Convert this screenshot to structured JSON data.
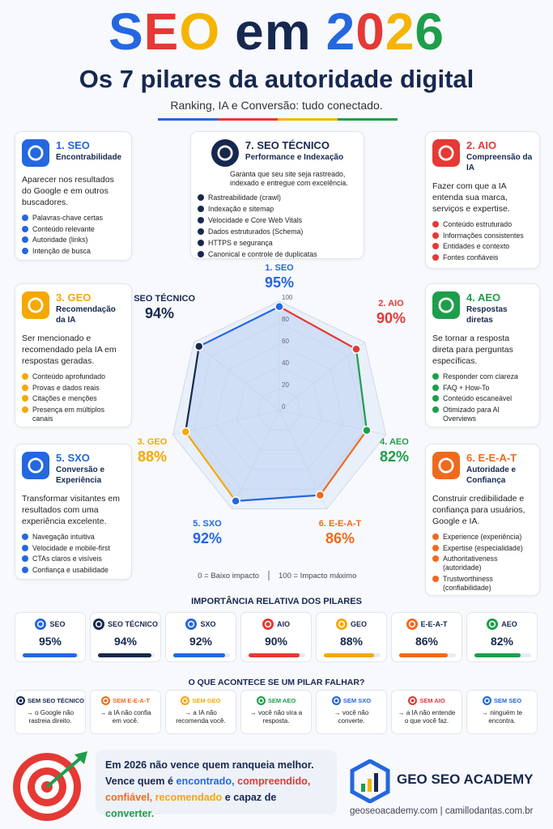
{
  "header": {
    "title_segments": [
      {
        "text": "S",
        "color": "#2467e0"
      },
      {
        "text": "E",
        "color": "#e53935"
      },
      {
        "text": "O",
        "color": "#f5b400"
      },
      {
        "text": "em",
        "color": "#17284f"
      },
      {
        "text": "2",
        "color": "#2467e0"
      },
      {
        "text": "0",
        "color": "#e53935"
      },
      {
        "text": "2",
        "color": "#f5b400"
      },
      {
        "text": "6",
        "color": "#1e9e4a"
      }
    ],
    "subtitle": "Os 7 pilares da autoridade digital",
    "tagline": "Ranking, IA e Conversão: tudo conectado."
  },
  "cards": [
    {
      "title": "1. SEO",
      "subtitle": "Encontrabilidade",
      "description": "Aparecer nos resultados do Google e em outros buscadores.",
      "bullets": [
        "Palavras-chave certas",
        "Conteúdo relevante",
        "Autoridade (links)",
        "Intenção de busca"
      ],
      "color": "#2467e0"
    },
    {
      "title": "7. SEO TÉCNICO",
      "subtitle": "Performance e Indexação",
      "description": "Garanta que seu site seja rastreado, indexado e entregue com excelência.",
      "bullets": [
        "Rastreabilidade (crawl)",
        "Indexação e sitemap",
        "Velocidade e Core Web Vitals",
        "Dados estruturados (Schema)",
        "HTTPS e segurança",
        "Canonical e controle de duplicatas"
      ],
      "color": "#17284f"
    },
    {
      "title": "2. AIO",
      "subtitle": "Compreensão da IA",
      "description": "Fazer com que a IA entenda sua marca, serviços e expertise.",
      "bullets": [
        "Conteúdo estruturado",
        "Informações consistentes",
        "Entidades e contexto",
        "Fontes confiáveis"
      ],
      "color": "#e53935"
    },
    {
      "title": "3. GEO",
      "subtitle": "Recomendação da IA",
      "description": "Ser mencionado e recomendado pela IA em respostas geradas.",
      "bullets": [
        "Conteúdo aprofundado",
        "Provas e dados reais",
        "Citações e menções",
        "Presença em múltiplos canais"
      ],
      "color": "#f5a800"
    },
    {
      "title": "4. AEO",
      "subtitle": "Respostas diretas",
      "description": "Se tornar a resposta direta para perguntas específicas.",
      "bullets": [
        "Responder com clareza",
        "FAQ + How-To",
        "Conteúdo escaneável",
        "Otimizado para AI Overviews"
      ],
      "color": "#1e9e4a"
    },
    {
      "title": "5. SXO",
      "subtitle": "Conversão e Experiência",
      "description": "Transformar visitantes em resultados com uma experiência excelente.",
      "bullets": [
        "Navegação intuitiva",
        "Velocidade e mobile-first",
        "CTAs claros e visíveis",
        "Confiança e usabilidade"
      ],
      "color": "#2467e0"
    },
    {
      "title": "6. E-E-A-T",
      "subtitle": "Autoridade e Confiança",
      "description": "Construir credibilidade e confiança para usuários, Google e IA.",
      "bullets": [
        "Experience (experiência)",
        "Expertise (especialidade)",
        "Authoritativeness (autoridade)",
        "Trustworthiness (confiabilidade)"
      ],
      "color": "#f06a1d"
    }
  ],
  "chart_data": [
    {
      "type": "radar",
      "categories": [
        "1. SEO",
        "2. AIO",
        "4. AEO",
        "6. E-E-A-T",
        "5. SXO",
        "3. GEO",
        "7. SEO TÉCNICO"
      ],
      "values": [
        95,
        90,
        82,
        86,
        92,
        88,
        94
      ],
      "value_labels": [
        "95%",
        "90%",
        "82%",
        "86%",
        "92%",
        "88%",
        "94%"
      ],
      "colors": [
        "#2467e0",
        "#e53935",
        "#1e9e4a",
        "#f06a1d",
        "#2467e0",
        "#f5a800",
        "#17284f"
      ],
      "rlim": [
        0,
        100
      ],
      "rticks": [
        0,
        20,
        40,
        60,
        80,
        100
      ],
      "annotations": [
        "0 = Baixo impacto",
        "100 = Impacto máximo"
      ]
    },
    {
      "type": "bar",
      "title": "IMPORTÂNCIA RELATIVA DOS PILARES",
      "categories": [
        "SEO",
        "SEO TÉCNICO",
        "SXO",
        "AIO",
        "GEO",
        "E-E-A-T",
        "AEO"
      ],
      "values": [
        95,
        94,
        92,
        90,
        88,
        86,
        82
      ],
      "value_labels": [
        "95%",
        "94%",
        "92%",
        "90%",
        "88%",
        "86%",
        "82%"
      ],
      "colors": [
        "#2467e0",
        "#17284f",
        "#2467e0",
        "#e53935",
        "#f5a800",
        "#f06a1d",
        "#1e9e4a"
      ],
      "xlim": [
        0,
        100
      ]
    }
  ],
  "failures": {
    "title": "O QUE ACONTECE SE UM PILAR FALHAR?",
    "items": [
      {
        "label": "SEM SEO TÉCNICO",
        "text": "→ o Google não rastreia direito.",
        "color": "#17284f"
      },
      {
        "label": "SEM E-E-A-T",
        "text": "→ a IA não confia em você.",
        "color": "#f06a1d"
      },
      {
        "label": "SEM GEO",
        "text": "→ a IA não recomenda você.",
        "color": "#f5a800"
      },
      {
        "label": "SEM AEO",
        "text": "→ você não vira a resposta.",
        "color": "#1e9e4a"
      },
      {
        "label": "SEM SXO",
        "text": "→ você não converte.",
        "color": "#2467e0"
      },
      {
        "label": "SEM AIO",
        "text": "→ a IA não entende o que você faz.",
        "color": "#e53935"
      },
      {
        "label": "SEM SEO",
        "text": "→ ninguém te encontra.",
        "color": "#2467e0"
      }
    ]
  },
  "footer": {
    "quote_line1": "Em 2026 não vence quem ranqueia melhor.",
    "quote_line2": [
      {
        "text": "Vence quem é",
        "color": "#17284f"
      },
      {
        "text": "encontrado,",
        "color": "#2467e0"
      },
      {
        "text": "compreendido,",
        "color": "#e53935"
      },
      {
        "text": "confiável,",
        "color": "#f06a1d"
      },
      {
        "text": "recomendado",
        "color": "#f5a800"
      },
      {
        "text": "e capaz de",
        "color": "#17284f"
      },
      {
        "text": "converter.",
        "color": "#1e9e4a"
      }
    ],
    "brand": "GEO SEO ACADEMY",
    "links": "geoseoacademy.com | camillodantas.com.br"
  }
}
